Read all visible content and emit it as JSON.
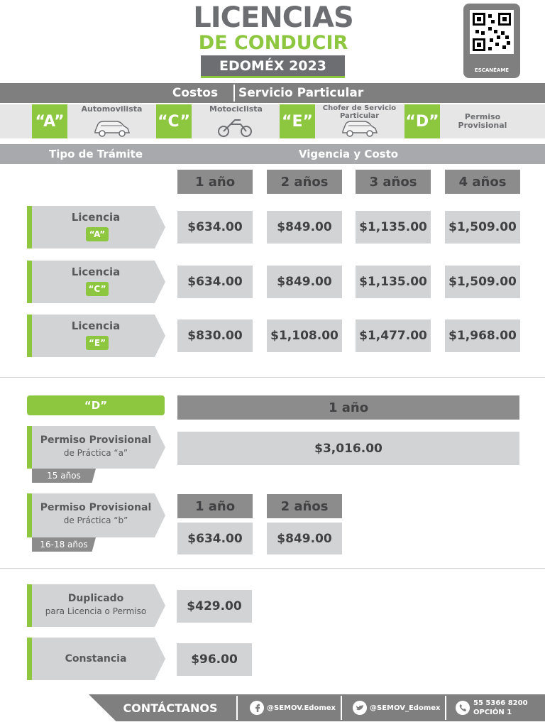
{
  "header": {
    "title_line1": "LICENCIAS",
    "title_line2": "DE CONDUCIR",
    "subtitle": "EDOMÉX 2023",
    "qr_label": "ESCANÉAME"
  },
  "banner": {
    "left": "Costos",
    "right": "Servicio Particular"
  },
  "types": [
    {
      "code": "“A”",
      "label": "Automovilista"
    },
    {
      "code": "“C”",
      "label": "Motociclista"
    },
    {
      "code": "“E”",
      "label": "Chofer de Servicio Particular"
    },
    {
      "code": "“D”",
      "label": "Permiso Provisional"
    }
  ],
  "table_header": {
    "left": "Tipo de Trámite",
    "right": "Vigencia y Costo"
  },
  "periods": [
    "1 año",
    "2 años",
    "3 años",
    "4 años"
  ],
  "licenses": [
    {
      "name": "Licencia",
      "code": "“A”",
      "prices": [
        "$634.00",
        "$849.00",
        "$1,135.00",
        "$1,509.00"
      ]
    },
    {
      "name": "Licencia",
      "code": "“C”",
      "prices": [
        "$634.00",
        "$849.00",
        "$1,135.00",
        "$1,509.00"
      ]
    },
    {
      "name": "Licencia",
      "code": "“E”",
      "prices": [
        "$830.00",
        "$1,108.00",
        "$1,477.00",
        "$1,968.00"
      ]
    }
  ],
  "permit": {
    "code": "“D”",
    "period": "1 año",
    "a": {
      "title": "Permiso Provisional",
      "subtitle": "de Práctica “a”",
      "age": "15 años",
      "price": "$3,016.00"
    },
    "b": {
      "title": "Permiso Provisional",
      "subtitle": "de Práctica “b”",
      "age": "16-18 años",
      "periods": [
        "1 año",
        "2 años"
      ],
      "prices": [
        "$634.00",
        "$849.00"
      ]
    }
  },
  "others": [
    {
      "title": "Duplicado",
      "subtitle": "para Licencia o Permiso",
      "price": "$429.00"
    },
    {
      "title": "Constancia",
      "price": "$96.00"
    }
  ],
  "footer": {
    "contact": "CONTÁCTANOS",
    "facebook": "@SEMOV.Edomex",
    "twitter": "@SEMOV_Edomex",
    "phone": "55 5366 8200",
    "option": "OPCIÓN 1"
  }
}
